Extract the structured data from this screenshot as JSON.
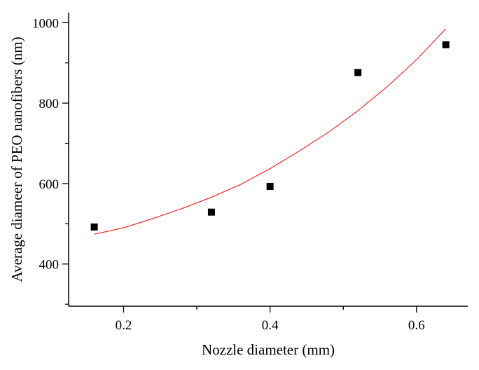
{
  "chart_data": {
    "type": "scatter",
    "title": "",
    "xlabel": "Nozzle diameter (mm)",
    "ylabel": "Average diameer of PEO nanofibers (nm)",
    "xlim": [
      0.125,
      0.67
    ],
    "ylim": [
      295,
      1025
    ],
    "xticks": [
      0.2,
      0.4,
      0.6
    ],
    "xtick_labels": [
      "0.2",
      "0.4",
      "0.6"
    ],
    "yticks": [
      400,
      600,
      800,
      1000
    ],
    "ytick_labels": [
      "400",
      "600",
      "800",
      "1000"
    ],
    "grid": false,
    "legend": "none",
    "series": [
      {
        "type": "scatter",
        "marker": "square",
        "color": "#000000",
        "x": [
          0.16,
          0.32,
          0.4,
          0.52,
          0.64
        ],
        "y": [
          492,
          529,
          593,
          876,
          945
        ]
      },
      {
        "type": "line",
        "color": "#ff0000",
        "x": [
          0.16,
          0.2,
          0.24,
          0.28,
          0.32,
          0.36,
          0.4,
          0.44,
          0.48,
          0.52,
          0.56,
          0.6,
          0.64
        ],
        "y": [
          474,
          490,
          513,
          538,
          566,
          598,
          637,
          681,
          728,
          781,
          841,
          908,
          985
        ]
      }
    ]
  }
}
